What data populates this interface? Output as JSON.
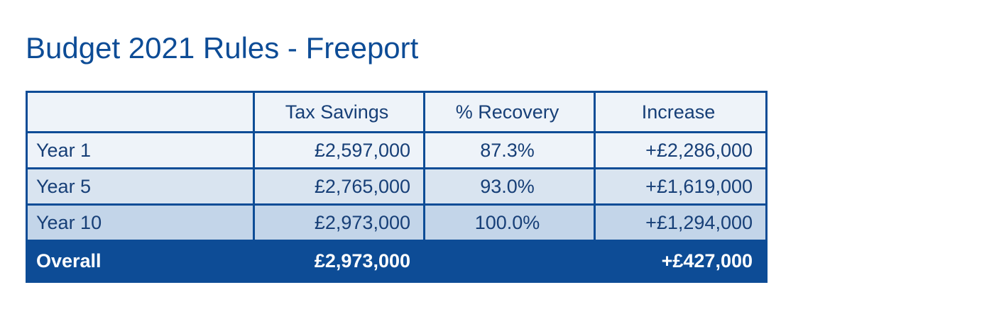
{
  "title": "Budget 2021 Rules - Freeport",
  "table": {
    "headers": [
      "",
      "Tax Savings",
      "% Recovery",
      "Increase"
    ],
    "rows": [
      {
        "label": "Year 1",
        "tax_savings": "£2,597,000",
        "recovery": "87.3%",
        "increase": "+£2,286,000"
      },
      {
        "label": "Year 5",
        "tax_savings": "£2,765,000",
        "recovery": "93.0%",
        "increase": "+£1,619,000"
      },
      {
        "label": "Year 10",
        "tax_savings": "£2,973,000",
        "recovery": "100.0%",
        "increase": "+£1,294,000"
      }
    ],
    "total": {
      "label": "Overall",
      "tax_savings": "£2,973,000",
      "recovery": "",
      "increase": "+£427,000"
    }
  },
  "colors": {
    "brand_blue": "#0d4c96",
    "row_light": "#eef3f9",
    "row_mid": "#d9e4f0",
    "row_dark": "#c3d5e9"
  }
}
